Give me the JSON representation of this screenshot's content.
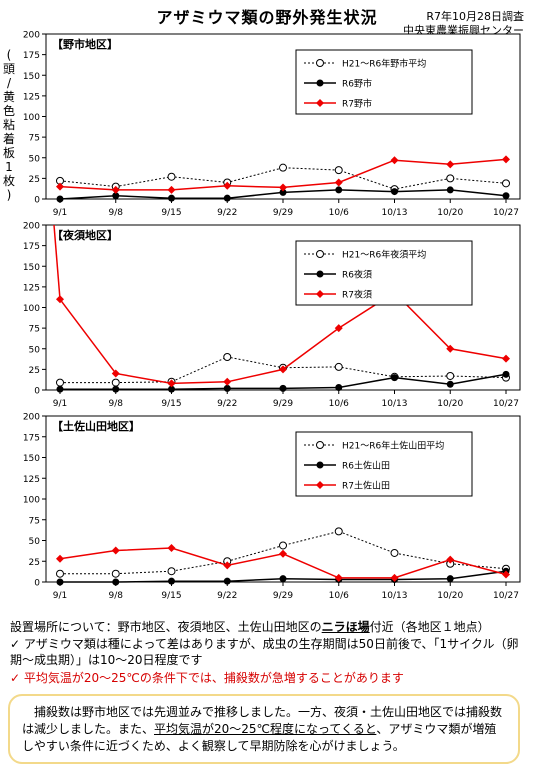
{
  "header": {
    "title": "アザミウマ類の野外発生状況",
    "date": "R7年10月28日調査",
    "org": "中央東農業振興センター"
  },
  "ylabel_chars": [
    "(",
    "頭",
    "/",
    "黄",
    "色",
    "粘",
    "着",
    "板",
    "1",
    "枚",
    ")"
  ],
  "colors": {
    "avg": "#000000",
    "r6": "#000000",
    "r7": "#ee0000"
  },
  "chart_data": [
    {
      "type": "line",
      "title": "【野市地区】",
      "categories": [
        "9/1",
        "9/8",
        "9/15",
        "9/22",
        "9/29",
        "10/6",
        "10/13",
        "10/20",
        "10/27"
      ],
      "ylim": [
        0,
        200
      ],
      "yticks": [
        0,
        25,
        50,
        75,
        100,
        125,
        150,
        175,
        200
      ],
      "legend_position": "top-right",
      "series": [
        {
          "name": "H21～R6年野市平均",
          "style": "avg",
          "values": [
            22,
            15,
            27,
            20,
            38,
            35,
            12,
            25,
            19
          ]
        },
        {
          "name": "R6野市",
          "style": "r6",
          "values": [
            0,
            4,
            1,
            1,
            8,
            11,
            9,
            11,
            4
          ]
        },
        {
          "name": "R7野市",
          "style": "r7",
          "values": [
            15,
            11,
            11,
            16,
            14,
            20,
            47,
            42,
            48
          ]
        }
      ]
    },
    {
      "type": "line",
      "title": "【夜須地区】",
      "categories": [
        "9/1",
        "9/8",
        "9/15",
        "9/22",
        "9/29",
        "10/6",
        "10/13",
        "10/20",
        "10/27"
      ],
      "ylim": [
        0,
        200
      ],
      "yticks": [
        0,
        25,
        50,
        75,
        100,
        125,
        150,
        175,
        200
      ],
      "legend_position": "top-right",
      "series": [
        {
          "name": "H21～R6年夜須平均",
          "style": "avg",
          "values": [
            9,
            9,
            10,
            40,
            27,
            28,
            16,
            17,
            15
          ]
        },
        {
          "name": "R6夜須",
          "style": "r6",
          "values": [
            1,
            1,
            1,
            2,
            2,
            3,
            15,
            7,
            19
          ]
        },
        {
          "name": "R7夜須",
          "style": "r7",
          "values": [
            110,
            20,
            8,
            10,
            25,
            75,
            118,
            50,
            38
          ]
        }
      ],
      "note": "R7 line starts above 200 before 9/1"
    },
    {
      "type": "line",
      "title": "【土佐山田地区】",
      "categories": [
        "9/1",
        "9/8",
        "9/15",
        "9/22",
        "9/29",
        "10/6",
        "10/13",
        "10/20",
        "10/27"
      ],
      "ylim": [
        0,
        200
      ],
      "yticks": [
        0,
        25,
        50,
        75,
        100,
        125,
        150,
        175,
        200
      ],
      "legend_position": "top-right",
      "series": [
        {
          "name": "H21～R6年土佐山田平均",
          "style": "avg",
          "values": [
            10,
            10,
            13,
            25,
            44,
            61,
            35,
            22,
            16
          ]
        },
        {
          "name": "R6土佐山田",
          "style": "r6",
          "values": [
            0,
            0,
            1,
            1,
            4,
            3,
            3,
            4,
            13
          ]
        },
        {
          "name": "R7土佐山田",
          "style": "r7",
          "values": [
            28,
            38,
            41,
            20,
            34,
            5,
            5,
            27,
            9
          ]
        }
      ]
    }
  ],
  "install": {
    "prefix": "設置場所について：野市地区、夜須地区、土佐山田地区の",
    "em": "ニラほ場",
    "suffix": "付近（各地区１地点）"
  },
  "bullets": [
    "✓ アザミウマ類は種によって差はありますが、成虫の生存期間は50日前後で、「1サイクル（卵期～成虫期）」は10～20日程度です",
    "✓ 平均気温が20～25℃の条件下では、捕殺数が急増することがあります"
  ],
  "summary": {
    "p1": "　捕殺数は野市地区では先週並みで推移しました。一方、夜須・土佐山田地区では捕殺数は減少しました。また、",
    "p2": "平均気温が20～25℃程度になってくると",
    "p3": "、アザミウマ類が増殖しやすい条件に近づくため、よく観察して早期防除を心がけましょう。"
  }
}
